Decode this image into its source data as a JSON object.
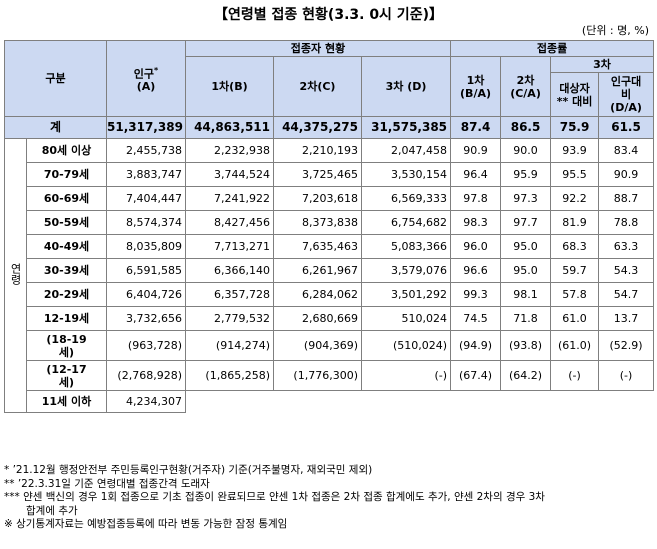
{
  "title": "【연령별 접종 현황(3.3. 0시 기준)】",
  "unit": "(단위 : 명, %)",
  "headers": {
    "group": "구분",
    "population": "인구",
    "population_mark": "*",
    "population_sub": "(A)",
    "vaccinated_status": "접종자 현황",
    "dose1": "1차(B)",
    "dose2": "2차(C)",
    "dose3": "3차 (D)",
    "rate": "접종률",
    "rate1a": "1차",
    "rate1b": "(B/A)",
    "rate2a": "2차",
    "rate2b": "(C/A)",
    "rate3": "3차",
    "rate3_target_a": "대상자",
    "rate3_target_b": "** 대비",
    "rate3_pop_a": "인구대",
    "rate3_pop_b": "비",
    "rate3_pop_c": "(D/A)",
    "age_vertical": "연령"
  },
  "total": {
    "label": "계",
    "population": "51,317,389",
    "dose1": "44,863,511",
    "dose2": "44,375,275",
    "dose3": "31,575,385",
    "rate1": "87.4",
    "rate2": "86.5",
    "rate3_target": "75.9",
    "rate3_pop": "61.5"
  },
  "rows": [
    {
      "label": "80세 이상",
      "population": "2,455,738",
      "dose1": "2,232,938",
      "dose2": "2,210,193",
      "dose3": "2,047,458",
      "rate1": "90.9",
      "rate2": "90.0",
      "rate3_target": "93.9",
      "rate3_pop": "83.4"
    },
    {
      "label": "70-79세",
      "population": "3,883,747",
      "dose1": "3,744,524",
      "dose2": "3,725,465",
      "dose3": "3,530,154",
      "rate1": "96.4",
      "rate2": "95.9",
      "rate3_target": "95.5",
      "rate3_pop": "90.9"
    },
    {
      "label": "60-69세",
      "population": "7,404,447",
      "dose1": "7,241,922",
      "dose2": "7,203,618",
      "dose3": "6,569,333",
      "rate1": "97.8",
      "rate2": "97.3",
      "rate3_target": "92.2",
      "rate3_pop": "88.7"
    },
    {
      "label": "50-59세",
      "population": "8,574,374",
      "dose1": "8,427,456",
      "dose2": "8,373,838",
      "dose3": "6,754,682",
      "rate1": "98.3",
      "rate2": "97.7",
      "rate3_target": "81.9",
      "rate3_pop": "78.8"
    },
    {
      "label": "40-49세",
      "population": "8,035,809",
      "dose1": "7,713,271",
      "dose2": "7,635,463",
      "dose3": "5,083,366",
      "rate1": "96.0",
      "rate2": "95.0",
      "rate3_target": "68.3",
      "rate3_pop": "63.3"
    },
    {
      "label": "30-39세",
      "population": "6,591,585",
      "dose1": "6,366,140",
      "dose2": "6,261,967",
      "dose3": "3,579,076",
      "rate1": "96.6",
      "rate2": "95.0",
      "rate3_target": "59.7",
      "rate3_pop": "54.3"
    },
    {
      "label": "20-29세",
      "population": "6,404,726",
      "dose1": "6,357,728",
      "dose2": "6,284,062",
      "dose3": "3,501,292",
      "rate1": "99.3",
      "rate2": "98.1",
      "rate3_target": "57.8",
      "rate3_pop": "54.7"
    },
    {
      "label": "12-19세",
      "population": "3,732,656",
      "dose1": "2,779,532",
      "dose2": "2,680,669",
      "dose3": "510,024",
      "rate1": "74.5",
      "rate2": "71.8",
      "rate3_target": "61.0",
      "rate3_pop": "13.7"
    }
  ],
  "sub_rows": [
    {
      "label_a": "(18-19",
      "label_b": "세)",
      "population": "(963,728)",
      "dose1": "(914,274)",
      "dose2": "(904,369)",
      "dose3": "(510,024)",
      "rate1": "(94.9)",
      "rate2": "(93.8)",
      "rate3_target": "(61.0)",
      "rate3_pop": "(52.9)"
    },
    {
      "label_a": "(12-17",
      "label_b": "세)",
      "population": "(2,768,928)",
      "dose1": "(1,865,258)",
      "dose2": "(1,776,300)",
      "dose3": "(-)",
      "rate1": "(67.4)",
      "rate2": "(64.2)",
      "rate3_target": "(-)",
      "rate3_pop": "(-)"
    }
  ],
  "under11": {
    "label": "11세 이하",
    "population": "4,234,307"
  },
  "notes": [
    "* ’21.12월 행정안전부 주민등록인구현황(거주자) 기준(거주불명자, 재외국민 제외)",
    "** ’22.3.31일 기준 연령대별 접종간격 도래자",
    "*** 얀센 백신의 경우 1회 접종으로 기초 접종이 완료되므로 얀센 1차 접종은 2차 접종 합계에도 추가, 얀센 2차의 경우 3차",
    "합계에 추가",
    "※ 상기통계자료는 예방접종등록에 따라 변동 가능한 잠정 통계임"
  ]
}
